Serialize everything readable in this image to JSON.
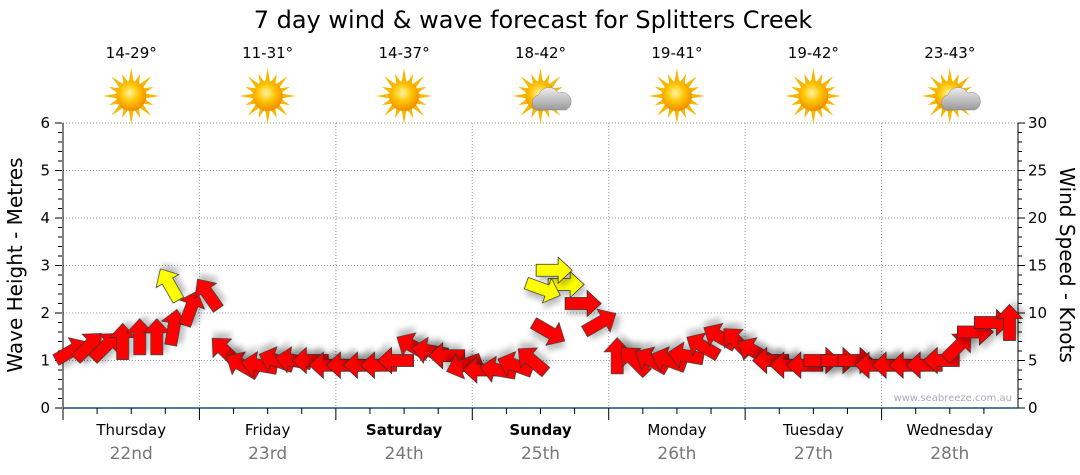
{
  "chart_data": {
    "type": "scatter",
    "title": "7 day wind & wave forecast for Splitters Creek",
    "ylabel_left": "Wave Height - Metres",
    "ylabel_right": "Wind Speed - Knots",
    "ylim_left": [
      0,
      6
    ],
    "ylim_right": [
      0,
      30
    ],
    "yticks_left": [
      "0",
      "1",
      "2",
      "3",
      "4",
      "5",
      "6"
    ],
    "yticks_right": [
      "0",
      "5",
      "10",
      "15",
      "20",
      "25",
      "30"
    ],
    "grid": true,
    "watermark": "www.seabreeze.com.au",
    "days": [
      {
        "name": "Thursday",
        "date": "22nd",
        "temp": "14-29°",
        "icon": "sun-icon",
        "bold": false
      },
      {
        "name": "Friday",
        "date": "23rd",
        "temp": "11-31°",
        "icon": "sun-icon",
        "bold": false
      },
      {
        "name": "Saturday",
        "date": "24th",
        "temp": "14-37°",
        "icon": "sun-icon",
        "bold": true
      },
      {
        "name": "Sunday",
        "date": "25th",
        "temp": "18-42°",
        "icon": "partly-cloudy-icon",
        "bold": true
      },
      {
        "name": "Monday",
        "date": "26th",
        "temp": "19-41°",
        "icon": "sun-icon",
        "bold": false
      },
      {
        "name": "Tuesday",
        "date": "27th",
        "temp": "19-42°",
        "icon": "sun-icon",
        "bold": false
      },
      {
        "name": "Wednesday",
        "date": "28th",
        "temp": "23-43°",
        "icon": "partly-cloudy-icon",
        "bold": false
      }
    ],
    "wind_series": {
      "name": "Wind speed (knots) and arrow heading (degrees, 0 = up)",
      "interval_hours": 3,
      "speed": [
        6,
        6.5,
        6.5,
        7,
        7.5,
        7.5,
        8.5,
        10.5,
        12,
        6,
        4.5,
        4.5,
        5,
        5,
        5,
        4.5,
        4.5,
        4.5,
        4.5,
        5,
        6.5,
        6,
        5.5,
        4.5,
        4,
        4,
        4.5,
        5,
        8,
        13,
        11,
        9,
        5.5,
        5,
        5,
        5,
        5.5,
        6.5,
        7.5,
        7,
        6,
        5,
        4.5,
        4.5,
        5,
        5,
        5,
        4.5,
        4.5,
        4.5,
        4.5,
        5,
        6.5,
        8,
        9,
        9
      ],
      "heading": [
        60,
        45,
        45,
        0,
        0,
        0,
        10,
        20,
        -35,
        -45,
        -60,
        -80,
        -70,
        -80,
        -90,
        -90,
        -90,
        -90,
        -90,
        -90,
        -60,
        -80,
        -90,
        -110,
        -90,
        -80,
        -70,
        -50,
        120,
        90,
        90,
        60,
        0,
        -45,
        -60,
        -70,
        -80,
        -60,
        -60,
        -45,
        -60,
        -90,
        -90,
        -90,
        90,
        90,
        90,
        -90,
        -90,
        -90,
        -90,
        -90,
        45,
        90,
        90,
        0
      ],
      "extra_points": [
        {
          "day_offset": 0.78,
          "speed": 13,
          "heading": -30
        },
        {
          "day_offset": 3.6,
          "speed": 14.5,
          "heading": 90
        },
        {
          "day_offset": 3.52,
          "speed": 12.5,
          "heading": 110
        }
      ],
      "strong_threshold": 12,
      "colors": {
        "normal": "#ff0000",
        "strong": "#ffff00"
      }
    }
  }
}
